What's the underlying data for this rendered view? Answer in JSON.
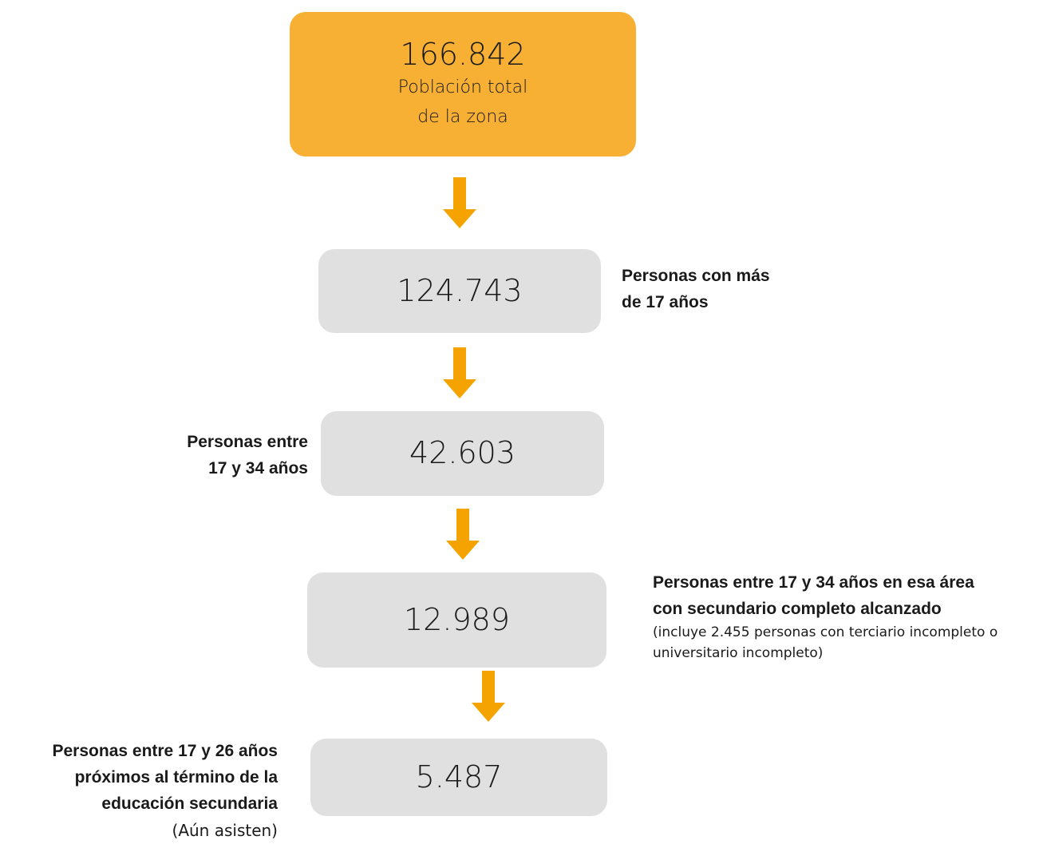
{
  "nodes": [
    {
      "value": "166.842",
      "label": [
        "Población total",
        "de la zona"
      ]
    },
    {
      "value": "124.743",
      "note": [
        "Personas con más",
        "de 17 años"
      ]
    },
    {
      "value": "42.603",
      "note": [
        "Personas entre",
        "17 y 34 años"
      ]
    },
    {
      "value": "12.989",
      "note": [
        "Personas entre 17 y 34 años en esa área",
        "con secundario completo alcanzado"
      ],
      "detail": [
        "(incluye 2.455 personas con terciario incompleto o",
        "universitario incompleto)"
      ]
    },
    {
      "value": "5.487",
      "note": [
        "Personas entre 17 y 26 años",
        "próximos al término de la",
        "educación secundaria"
      ],
      "detail": [
        "(Aún asisten)"
      ]
    }
  ]
}
